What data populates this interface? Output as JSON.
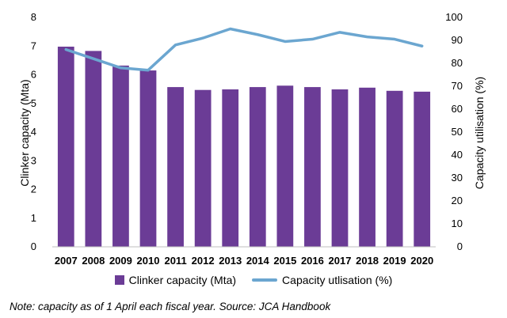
{
  "chart_data": {
    "type": "bar",
    "categories": [
      "2007",
      "2008",
      "2009",
      "2010",
      "2011",
      "2012",
      "2013",
      "2014",
      "2015",
      "2016",
      "2017",
      "2018",
      "2019",
      "2020"
    ],
    "series": [
      {
        "name": "Clinker capacity (Mta)",
        "type": "bar",
        "axis": "left",
        "color": "#6b3c96",
        "values": [
          6.98,
          6.83,
          6.32,
          6.15,
          5.57,
          5.47,
          5.49,
          5.57,
          5.62,
          5.57,
          5.49,
          5.55,
          5.44,
          5.41
        ]
      },
      {
        "name": "Capacity utlisation (%)",
        "type": "line",
        "axis": "right",
        "color": "#6ba6d0",
        "values": [
          86,
          82,
          78,
          77,
          88,
          91,
          95,
          92.5,
          89.5,
          90.5,
          93.5,
          91.5,
          90.5,
          87.5
        ]
      }
    ],
    "ylabel": "Clinker capacity (Mta)",
    "ylabel_right": "Capacity utilisation (%)",
    "ylim": [
      0,
      8
    ],
    "ylim_right": [
      0,
      100
    ],
    "yticks": [
      0,
      1,
      2,
      3,
      4,
      5,
      6,
      7,
      8
    ],
    "yticks_right": [
      0,
      10,
      20,
      30,
      40,
      50,
      60,
      70,
      80,
      90,
      100
    ],
    "grid": false,
    "legend_position": "bottom"
  },
  "note": "Note: capacity as of 1 April each fiscal year. Source: JCA Handbook"
}
